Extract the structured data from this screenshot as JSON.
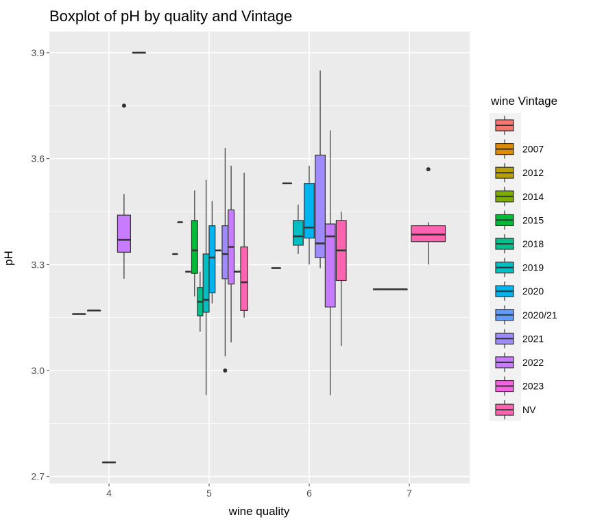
{
  "chart_data": {
    "type": "boxplot",
    "title": "Boxplot of pH by quality and Vintage",
    "xlabel": "wine quality",
    "ylabel": "pH",
    "x_categories": [
      "4",
      "5",
      "6",
      "7"
    ],
    "ylim": [
      2.68,
      3.96
    ],
    "y_ticks": [
      2.7,
      3.0,
      3.3,
      3.6,
      3.9
    ],
    "y_tick_labels": [
      "2.7",
      "3.0",
      "3.3",
      "3.6",
      "3.9"
    ],
    "grid": true,
    "panel_background": "#EBEBEB",
    "grid_color": "#FFFFFF",
    "legend": {
      "title": "wine Vintage",
      "position": "right",
      "items": [
        {
          "label": "",
          "color": "#F8766D"
        },
        {
          "label": "2007",
          "color": "#DE8C00"
        },
        {
          "label": "2012",
          "color": "#B79F00"
        },
        {
          "label": "2014",
          "color": "#7CAE00"
        },
        {
          "label": "2015",
          "color": "#00BA38"
        },
        {
          "label": "2018",
          "color": "#00C08B"
        },
        {
          "label": "2019",
          "color": "#00BFC4"
        },
        {
          "label": "2020",
          "color": "#00B4F0"
        },
        {
          "label": "2020/21",
          "color": "#619CFF"
        },
        {
          "label": "2021",
          "color": "#9F8AFF"
        },
        {
          "label": "2022",
          "color": "#C77CFF"
        },
        {
          "label": "2023",
          "color": "#F564E3"
        },
        {
          "label": "NV",
          "color": "#FF64B0"
        }
      ]
    },
    "boxes": [
      {
        "quality": "4",
        "vintage": "",
        "x_offset": -0.3,
        "width": 0.13,
        "min": 3.16,
        "q1": 3.16,
        "median": 3.16,
        "q3": 3.16,
        "max": 3.16,
        "outliers": []
      },
      {
        "quality": "4",
        "vintage": "2007",
        "x_offset": -0.15,
        "width": 0.13,
        "min": 3.17,
        "q1": 3.17,
        "median": 3.17,
        "q3": 3.17,
        "max": 3.17,
        "outliers": []
      },
      {
        "quality": "4",
        "vintage": "2012",
        "x_offset": 0.0,
        "width": 0.13,
        "min": 2.74,
        "q1": 2.74,
        "median": 2.74,
        "q3": 2.74,
        "max": 2.74,
        "outliers": []
      },
      {
        "quality": "4",
        "vintage": "2022",
        "x_offset": 0.15,
        "width": 0.13,
        "min": 3.26,
        "q1": 3.335,
        "median": 3.37,
        "q3": 3.44,
        "max": 3.5,
        "outliers": [
          3.75
        ]
      },
      {
        "quality": "4",
        "vintage": "2023",
        "x_offset": 0.3,
        "width": 0.13,
        "min": 3.9,
        "q1": 3.9,
        "median": 3.9,
        "q3": 3.9,
        "max": 3.9,
        "outliers": []
      },
      {
        "quality": "5",
        "vintage": "",
        "x_offset": -0.34,
        "width": 0.05,
        "min": 3.33,
        "q1": 3.33,
        "median": 3.33,
        "q3": 3.33,
        "max": 3.33,
        "outliers": []
      },
      {
        "quality": "5",
        "vintage": "2007",
        "x_offset": -0.29,
        "width": 0.05,
        "min": 3.42,
        "q1": 3.42,
        "median": 3.42,
        "q3": 3.42,
        "max": 3.42,
        "outliers": []
      },
      {
        "quality": "5",
        "vintage": "2014",
        "x_offset": -0.21,
        "width": 0.05,
        "min": 3.28,
        "q1": 3.28,
        "median": 3.28,
        "q3": 3.28,
        "max": 3.28,
        "outliers": []
      },
      {
        "quality": "5",
        "vintage": "2015",
        "x_offset": -0.145,
        "width": 0.06,
        "min": 3.21,
        "q1": 3.275,
        "median": 3.34,
        "q3": 3.425,
        "max": 3.51,
        "outliers": []
      },
      {
        "quality": "5",
        "vintage": "2018",
        "x_offset": -0.09,
        "width": 0.055,
        "min": 3.11,
        "q1": 3.155,
        "median": 3.195,
        "q3": 3.235,
        "max": 3.28,
        "outliers": []
      },
      {
        "quality": "5",
        "vintage": "2019",
        "x_offset": -0.03,
        "width": 0.06,
        "min": 2.93,
        "q1": 3.165,
        "median": 3.2,
        "q3": 3.33,
        "max": 3.54,
        "outliers": []
      },
      {
        "quality": "5",
        "vintage": "2020",
        "x_offset": 0.03,
        "width": 0.06,
        "min": 3.19,
        "q1": 3.22,
        "median": 3.32,
        "q3": 3.41,
        "max": 3.48,
        "outliers": []
      },
      {
        "quality": "5",
        "vintage": "2020/21",
        "x_offset": 0.09,
        "width": 0.06,
        "min": 3.34,
        "q1": 3.34,
        "median": 3.34,
        "q3": 3.34,
        "max": 3.34,
        "outliers": []
      },
      {
        "quality": "5",
        "vintage": "2021",
        "x_offset": 0.16,
        "width": 0.06,
        "min": 3.04,
        "q1": 3.26,
        "median": 3.33,
        "q3": 3.41,
        "max": 3.63,
        "outliers": [
          3.0
        ]
      },
      {
        "quality": "5",
        "vintage": "2022",
        "x_offset": 0.22,
        "width": 0.06,
        "min": 3.08,
        "q1": 3.245,
        "median": 3.35,
        "q3": 3.455,
        "max": 3.58,
        "outliers": []
      },
      {
        "quality": "5",
        "vintage": "2023",
        "x_offset": 0.28,
        "width": 0.06,
        "min": 3.28,
        "q1": 3.28,
        "median": 3.28,
        "q3": 3.28,
        "max": 3.28,
        "outliers": []
      },
      {
        "quality": "5",
        "vintage": "NV",
        "x_offset": 0.35,
        "width": 0.07,
        "min": 3.15,
        "q1": 3.17,
        "median": 3.25,
        "q3": 3.35,
        "max": 3.56,
        "outliers": []
      },
      {
        "quality": "6",
        "vintage": "",
        "x_offset": -0.33,
        "width": 0.09,
        "min": 3.29,
        "q1": 3.29,
        "median": 3.29,
        "q3": 3.29,
        "max": 3.29,
        "outliers": []
      },
      {
        "quality": "6",
        "vintage": "2007",
        "x_offset": -0.22,
        "width": 0.09,
        "min": 3.53,
        "q1": 3.53,
        "median": 3.53,
        "q3": 3.53,
        "max": 3.53,
        "outliers": []
      },
      {
        "quality": "6",
        "vintage": "2019",
        "x_offset": -0.11,
        "width": 0.1,
        "min": 3.33,
        "q1": 3.355,
        "median": 3.38,
        "q3": 3.425,
        "max": 3.47,
        "outliers": []
      },
      {
        "quality": "6",
        "vintage": "2020",
        "x_offset": 0.0,
        "width": 0.1,
        "min": 3.3,
        "q1": 3.375,
        "median": 3.405,
        "q3": 3.53,
        "max": 3.58,
        "outliers": []
      },
      {
        "quality": "6",
        "vintage": "2021",
        "x_offset": 0.11,
        "width": 0.1,
        "min": 3.29,
        "q1": 3.32,
        "median": 3.36,
        "q3": 3.61,
        "max": 3.85,
        "outliers": []
      },
      {
        "quality": "6",
        "vintage": "2022",
        "x_offset": 0.21,
        "width": 0.1,
        "min": 2.93,
        "q1": 3.18,
        "median": 3.38,
        "q3": 3.415,
        "max": 3.68,
        "outliers": []
      },
      {
        "quality": "6",
        "vintage": "NV",
        "x_offset": 0.32,
        "width": 0.1,
        "min": 3.07,
        "q1": 3.255,
        "median": 3.34,
        "q3": 3.425,
        "max": 3.45,
        "outliers": []
      },
      {
        "quality": "7",
        "vintage": "",
        "x_offset": -0.19,
        "width": 0.34,
        "min": 3.23,
        "q1": 3.23,
        "median": 3.23,
        "q3": 3.23,
        "max": 3.23,
        "outliers": []
      },
      {
        "quality": "7",
        "vintage": "NV",
        "x_offset": 0.19,
        "width": 0.34,
        "min": 3.3,
        "q1": 3.365,
        "median": 3.385,
        "q3": 3.41,
        "max": 3.42,
        "outliers": [
          3.57
        ]
      }
    ]
  }
}
